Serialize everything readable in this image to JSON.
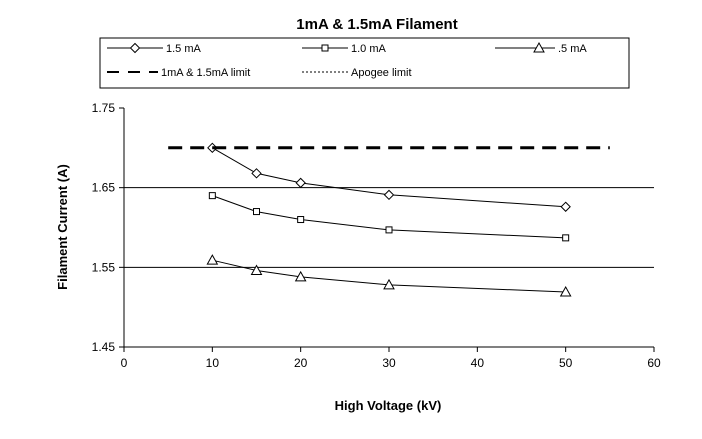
{
  "chart_data": {
    "type": "line",
    "title": "1mA & 1.5mA Filament",
    "xlabel": "High Voltage (kV)",
    "ylabel": "Filament Current (A)",
    "xlim": [
      0,
      60
    ],
    "ylim": [
      1.45,
      1.75
    ],
    "xticks": [
      "0",
      "10",
      "20",
      "30",
      "40",
      "50",
      "60"
    ],
    "yticks": [
      "1.45",
      "1.55",
      "1.65",
      "1.75"
    ],
    "gridlines_y": [
      1.55,
      1.65
    ],
    "legend_position": "top",
    "series": [
      {
        "name": "1.5 mA",
        "marker": "diamond",
        "x": [
          10,
          15,
          20,
          30,
          50
        ],
        "y": [
          1.7,
          1.668,
          1.656,
          1.641,
          1.626
        ]
      },
      {
        "name": "1.0 mA",
        "marker": "square",
        "x": [
          10,
          15,
          20,
          30,
          50
        ],
        "y": [
          1.64,
          1.62,
          1.61,
          1.597,
          1.587
        ]
      },
      {
        "name": ".5 mA",
        "marker": "triangle",
        "x": [
          10,
          15,
          20,
          30,
          50
        ],
        "y": [
          1.559,
          1.546,
          1.538,
          1.528,
          1.519
        ]
      },
      {
        "name": "1mA & 1.5mA limit",
        "style": "dashed",
        "x": [
          5,
          55
        ],
        "y": [
          1.7,
          1.7
        ]
      },
      {
        "name": "Apogee limit",
        "style": "dotted",
        "x": [],
        "y": []
      }
    ]
  }
}
